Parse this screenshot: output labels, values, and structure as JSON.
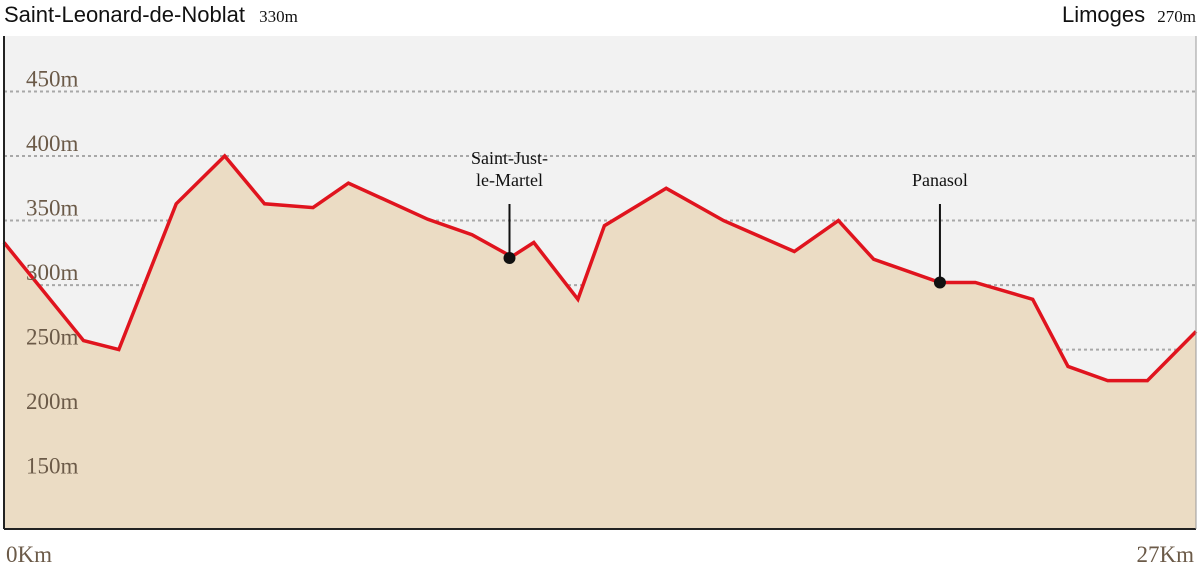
{
  "header": {
    "start_name": "Saint-Leonard-de-Noblat",
    "start_alt": "330m",
    "end_name": "Limoges",
    "end_alt": "270m"
  },
  "chart_data": {
    "type": "area",
    "ylim": [
      111,
      493
    ],
    "xlim": [
      0,
      27
    ],
    "y_ticks": [
      {
        "value": 450,
        "label": "450m"
      },
      {
        "value": 400,
        "label": "400m"
      },
      {
        "value": 350,
        "label": "350m"
      },
      {
        "value": 300,
        "label": "300m"
      },
      {
        "value": 250,
        "label": "250m"
      },
      {
        "value": 200,
        "label": "200m"
      },
      {
        "value": 150,
        "label": "150m"
      }
    ],
    "x_ticks": [
      {
        "value": 0,
        "label": "0Km"
      },
      {
        "value": 27,
        "label": "27Km"
      }
    ],
    "points": [
      {
        "x": 0.0,
        "y": 333
      },
      {
        "x": 1.8,
        "y": 257
      },
      {
        "x": 2.6,
        "y": 250
      },
      {
        "x": 3.9,
        "y": 363
      },
      {
        "x": 5.0,
        "y": 400
      },
      {
        "x": 5.9,
        "y": 363
      },
      {
        "x": 7.0,
        "y": 360
      },
      {
        "x": 7.8,
        "y": 379
      },
      {
        "x": 9.6,
        "y": 351
      },
      {
        "x": 10.6,
        "y": 339
      },
      {
        "x": 11.5,
        "y": 322
      },
      {
        "x": 12.0,
        "y": 333
      },
      {
        "x": 13.0,
        "y": 289
      },
      {
        "x": 13.6,
        "y": 346
      },
      {
        "x": 15.0,
        "y": 375
      },
      {
        "x": 16.3,
        "y": 350
      },
      {
        "x": 17.9,
        "y": 326
      },
      {
        "x": 18.9,
        "y": 350
      },
      {
        "x": 19.7,
        "y": 320
      },
      {
        "x": 21.2,
        "y": 302
      },
      {
        "x": 22.0,
        "y": 302
      },
      {
        "x": 23.3,
        "y": 289
      },
      {
        "x": 24.1,
        "y": 237
      },
      {
        "x": 25.0,
        "y": 226
      },
      {
        "x": 25.9,
        "y": 226
      },
      {
        "x": 27.0,
        "y": 264
      }
    ],
    "waypoints": [
      {
        "x": 11.45,
        "y": 321,
        "lines": [
          "Saint-Just-",
          "le-Martel"
        ]
      },
      {
        "x": 21.2,
        "y": 302,
        "lines": [
          "Panasol"
        ]
      }
    ],
    "colors": {
      "line": "#e0141e",
      "fill": "#ebdcc4",
      "background": "#f2f2f2",
      "grid": "#a8a8a8",
      "tick_label": "#6b5a48",
      "frame": "#222222"
    }
  }
}
